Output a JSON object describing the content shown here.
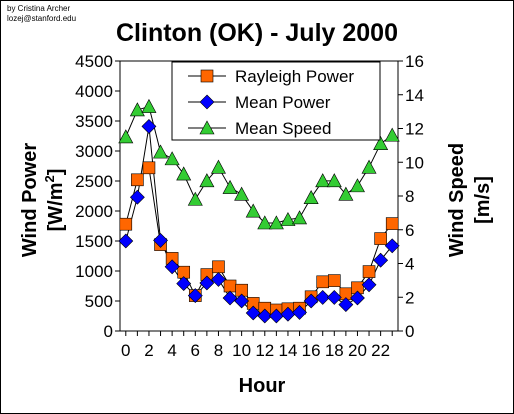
{
  "credit": {
    "line1": "by Cristina Archer",
    "line2": "lozej@stanford.edu"
  },
  "chart_data": {
    "type": "line",
    "title": "Clinton (OK) - July 2000",
    "xlabel": "Hour",
    "ylabel_main": "Wind Power",
    "ylabel_unit_pre": "[W/m",
    "ylabel_unit_sup": "2",
    "ylabel_unit_post": "]",
    "y2label_main": "Wind Speed",
    "y2label_unit": "[m/s]",
    "xlim": [
      -0.5,
      23.5
    ],
    "ylim": [
      0,
      4500
    ],
    "y2lim": [
      0,
      16
    ],
    "x": [
      0,
      1,
      2,
      3,
      4,
      5,
      6,
      7,
      8,
      9,
      10,
      11,
      12,
      13,
      14,
      15,
      16,
      17,
      18,
      19,
      20,
      21,
      22,
      23
    ],
    "xtick_values": [
      0,
      2,
      4,
      6,
      8,
      10,
      12,
      14,
      16,
      18,
      20,
      22
    ],
    "xtick_labels": [
      "0",
      "2",
      "4",
      "6",
      "8",
      "10",
      "12",
      "14",
      "16",
      "18",
      "20",
      "22"
    ],
    "ytick_values": [
      0,
      500,
      1000,
      1500,
      2000,
      2500,
      3000,
      3500,
      4000,
      4500
    ],
    "ytick_labels": [
      "0",
      "500",
      "1000",
      "1500",
      "2000",
      "2500",
      "3000",
      "3500",
      "4000",
      "4500"
    ],
    "y2tick_values": [
      0,
      2,
      4,
      6,
      8,
      10,
      12,
      14,
      16
    ],
    "y2tick_labels": [
      "0",
      "2",
      "4",
      "6",
      "8",
      "10",
      "12",
      "14",
      "16"
    ],
    "legend_position": "top-center",
    "series": [
      {
        "name": "Rayleigh Power",
        "axis": "left",
        "marker": "square",
        "color": "#FF6600",
        "values": [
          1780,
          2520,
          2720,
          1440,
          1210,
          980,
          590,
          940,
          1070,
          750,
          680,
          460,
          380,
          350,
          370,
          380,
          570,
          820,
          840,
          620,
          720,
          990,
          1540,
          1790
        ]
      },
      {
        "name": "Mean Power",
        "axis": "left",
        "marker": "diamond",
        "color": "#0000FF",
        "values": [
          1500,
          2230,
          3410,
          1510,
          1070,
          790,
          590,
          800,
          860,
          550,
          500,
          300,
          250,
          250,
          280,
          310,
          500,
          560,
          560,
          440,
          550,
          770,
          1180,
          1420
        ]
      },
      {
        "name": "Mean Speed",
        "axis": "right",
        "marker": "triangle",
        "color": "#33CC33",
        "values": [
          11.5,
          13.1,
          13.3,
          10.6,
          10.2,
          9.3,
          7.8,
          8.9,
          9.7,
          8.5,
          8.1,
          7.1,
          6.4,
          6.4,
          6.6,
          6.7,
          7.9,
          8.9,
          8.9,
          8.1,
          8.6,
          9.7,
          11.1,
          11.6
        ]
      }
    ]
  }
}
